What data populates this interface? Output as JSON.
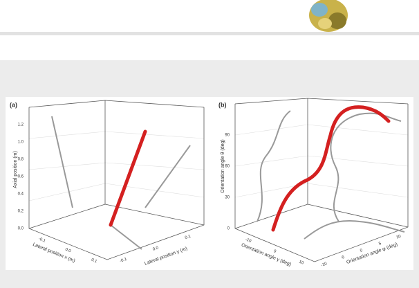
{
  "figure": {
    "panels": [
      {
        "label": "(a)",
        "z_axis_title": "Axial position (m)",
        "z_ticks": [
          "0.0",
          "0.2",
          "0.4",
          "0.6",
          "0.8",
          "1.0",
          "1.2"
        ],
        "x_axis_title": "Lateral position x (m)",
        "x_ticks": [
          "-0.1",
          "0.0",
          "0.1"
        ],
        "y_axis_title": "Lateral position y (m)",
        "y_ticks": [
          "-0.1",
          "0.0",
          "0.1"
        ]
      },
      {
        "label": "(b)",
        "z_axis_title": "Orientation angle θ (deg)",
        "z_ticks": [
          "0",
          "30",
          "60",
          "90"
        ],
        "x_axis_title": "Orientation angle γ (deg)",
        "x_ticks": [
          "-10",
          "0",
          "10"
        ],
        "y_axis_title": "Orientation angle φ (deg)",
        "y_ticks": [
          "-10",
          "-5",
          "0",
          "5",
          "10"
        ]
      }
    ]
  }
}
